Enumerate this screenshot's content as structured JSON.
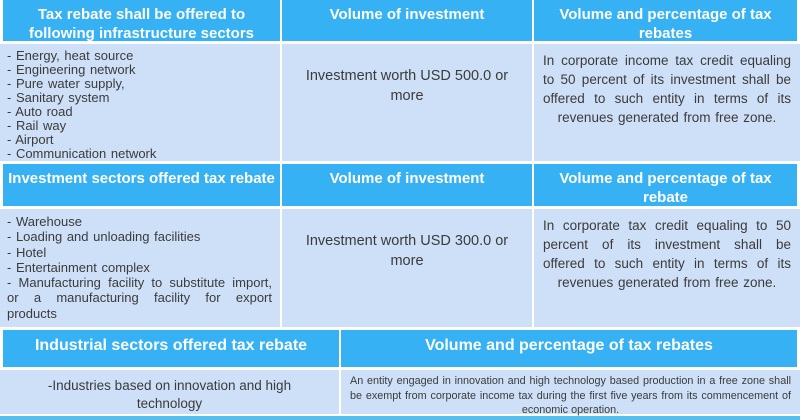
{
  "colors": {
    "header_bg": "#36B1F3",
    "body_bg": "#CEE0F7",
    "header_text": "#FFFFFF",
    "body_text": "#3B3B3B",
    "bottom_strip": "#55C0F0"
  },
  "table": {
    "sections": [
      {
        "headers": [
          "Tax rebate shall be offered to following infrastructure sectors",
          "Volume of investment",
          "Volume and percentage of tax rebates"
        ],
        "body": {
          "sectors": [
            "- Energy, heat source",
            "- Engineering network",
            "- Pure water supply,",
            "- Sanitary system",
            "- Auto road",
            "- Rail way",
            "- Airport",
            "- Communication network"
          ],
          "investment_volume": "Investment worth USD 500.0 or more",
          "rebate_terms": "In corporate income tax credit equaling to 50 percent of its investment shall be offered to such entity in terms of its revenues generated from free zone."
        }
      },
      {
        "headers": [
          "Investment sectors offered tax rebate",
          "Volume of investment",
          "Volume and percentage of tax rebate"
        ],
        "body": {
          "sectors": [
            "- Warehouse",
            "- Loading and unloading facilities",
            "- Hotel",
            "- Entertainment  complex",
            "- Manufacturing  facility to substitute  import, or a manufacturing  facility for export products"
          ],
          "investment_volume": "Investment worth USD 300.0 or more",
          "rebate_terms": "In corporate tax credit equaling to 50 percent of its investment shall be offered to such entity in terms of its revenues generated from free zone."
        }
      },
      {
        "headers": [
          "Industrial sectors offered tax rebate",
          "Volume and percentage of tax rebates"
        ],
        "body": {
          "sectors_text": "-Industries based on innovation and high technology",
          "rebate_terms": "An entity engaged in innovation and high technology based production in a free zone shall be exempt from corporate income tax during the first five years from its commencement of economic operation."
        }
      }
    ]
  }
}
